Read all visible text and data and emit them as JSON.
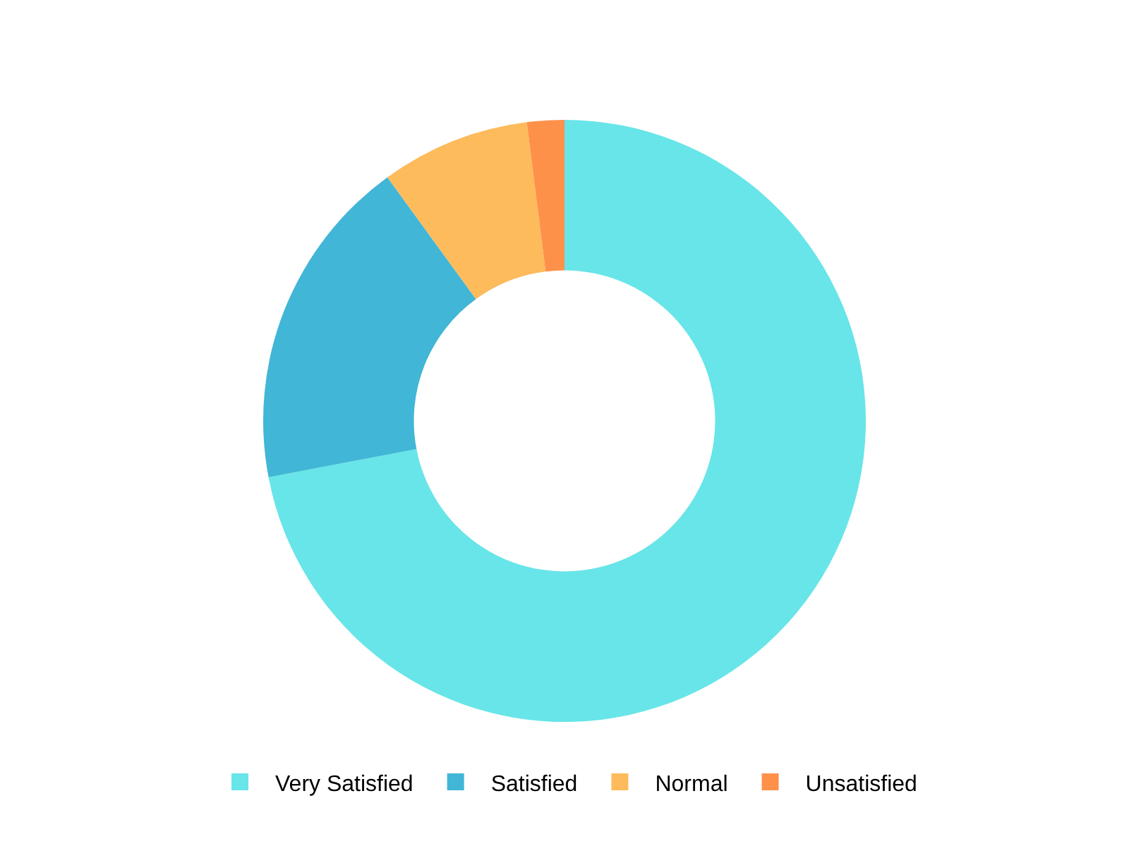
{
  "chart_data": {
    "type": "donut",
    "categories": [
      "Very Satisfied",
      "Satisfied",
      "Normal",
      "Unsatisfied"
    ],
    "values": [
      72,
      18,
      8,
      2
    ],
    "colors": [
      "#68e5e8",
      "#41b6d6",
      "#fdbb5c",
      "#fe914a"
    ],
    "legend": "bottom"
  }
}
